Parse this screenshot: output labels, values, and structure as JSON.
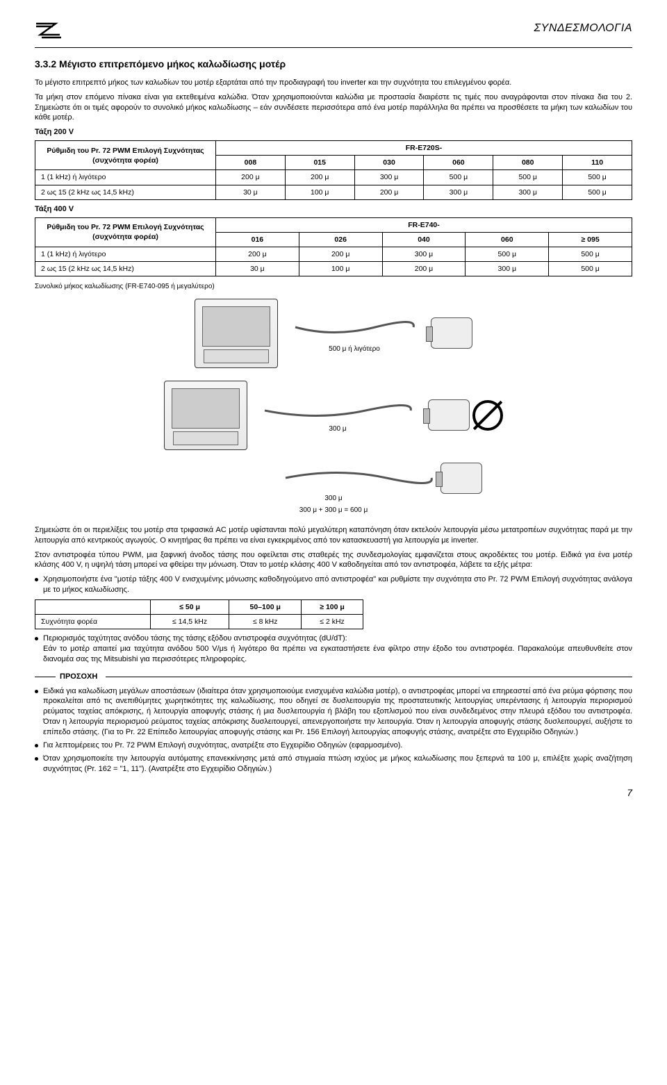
{
  "header": {
    "title_word": "ΣΥΝΔΕΣΜΟΛΟΓΙΑ"
  },
  "section": {
    "number_title": "3.3.2 Μέγιστο επιτρεπόμενο μήκος καλωδίωσης μοτέρ",
    "para1": "Το μέγιστο επιτρεπτό μήκος των καλωδίων του μοτέρ εξαρτάται από την προδιαγραφή του inverter και την συχνότητα του επιλεγμένου φορέα.",
    "para2": "Τα μήκη στον επόμενο πίνακα είναι για εκτεθειμένα καλώδια. Όταν χρησιμοποιούνται καλώδια με προστασία διαιρέστε τις τιμές που αναγράφονται στον πίνακα δια του 2. Σημειώστε ότι οι τιμές αφορούν το συνολικό μήκος καλωδίωσης – εάν συνδέσετε περισσότερα από ένα μοτέρ παράλληλα θα πρέπει να προσθέσετε τα μήκη των καλωδίων του κάθε μοτέρ."
  },
  "tables": {
    "t200v": {
      "heading": "Τάξη 200 V",
      "param_line1": "Ρύθμιδη του Pr. 72 PWM Επιλογή Συχνότητας",
      "param_line2": "(συχνότητα φορέα)",
      "model_prefix": "FR-E720S-",
      "models": [
        "008",
        "015",
        "030",
        "060",
        "080",
        "110"
      ],
      "rows": [
        {
          "label": "1 (1 kHz) ή λιγότερο",
          "vals": [
            "200 μ",
            "200 μ",
            "300 μ",
            "500 μ",
            "500 μ",
            "500 μ"
          ]
        },
        {
          "label": "2 ως 15 (2 kHz ως 14,5 kHz)",
          "vals": [
            "30 μ",
            "100 μ",
            "200 μ",
            "300 μ",
            "300 μ",
            "500 μ"
          ]
        }
      ]
    },
    "t400v": {
      "heading": "Τάξη 400 V",
      "param_line1": "Ρύθμιδη του Pr. 72 PWM Επιλογή Συχνότητας",
      "param_line2": "(συχνότητα φορέα)",
      "model_prefix": "FR-E740-",
      "models": [
        "016",
        "026",
        "040",
        "060",
        "≥ 095"
      ],
      "rows": [
        {
          "label": "1 (1 kHz) ή λιγότερο",
          "vals": [
            "200 μ",
            "200 μ",
            "300 μ",
            "500 μ",
            "500 μ"
          ]
        },
        {
          "label": "2 ως 15 (2 kHz ως 14,5 kHz)",
          "vals": [
            "30 μ",
            "100 μ",
            "200 μ",
            "300 μ",
            "500 μ"
          ]
        }
      ]
    }
  },
  "diagram": {
    "caption": "Συνολικό μήκος καλωδίωσης (FR-E740-095 ή μεγαλύτερο)",
    "label_top": "500 μ ή λιγότερο",
    "label_mid": "300 μ",
    "label_bot": "300 μ",
    "sum_line": "300 μ + 300 μ = 600 μ"
  },
  "paras_after": {
    "p1": "Σημειώστε ότι οι περιελίξεις του μοτέρ στα τριφασικά AC μοτέρ υφίστανται πολύ μεγαλύτερη καταπόνηση όταν εκτελούν λειτουργία μέσω μετατροπέων συχνότητας παρά με την λειτουργία από κεντρικούς αγωγούς. Ο κινητήρας θα πρέπει να είναι εγκεκριμένος από τον κατασκευαστή για λειτουργία με inverter.",
    "p2": "Στον αντιστροφέα τύπου PWM, μια ξαφνική άνοδος τάσης που οφείλεται στις σταθερές της συνδεσμολογίας εμφανίζεται στους ακροδέκτες του μοτέρ. Ειδικά για ένα μοτέρ κλάσης 400 V, η υψηλή τάση μπορεί να φθείρει την μόνωση. Όταν το μοτέρ κλάσης 400 V καθοδηγείται από τον αντιστροφέα, λάβετε τα εξής μέτρα:",
    "bullet1": "Χρησιμοποιήστε ένα \"μοτέρ τάξης 400 V ενισχυμένης μόνωσης καθοδηγούμενο από αντιστροφέα\" και ρυθμίστε την συχνότητα στο Pr. 72 PWM Επιλογή συχνότητας ανάλογα με το μήκος καλωδίωσης."
  },
  "freq_table": {
    "headers": [
      "≤ 50 μ",
      "50–100 μ",
      "≥ 100 μ"
    ],
    "row_label": "Συχνότητα φορέα",
    "row_vals": [
      "≤ 14,5 kHz",
      "≤ 8 kHz",
      "≤ 2 kHz"
    ]
  },
  "paras_after2": {
    "bullet2": "Περιορισμός ταχύτητας ανόδου τάσης της τάσης εξόδου αντιστροφέα συχνότητας (dU/dT):\nΕάν το μοτέρ απαιτεί μια ταχύτητα ανόδου 500 V/μs ή λιγότερο θα πρέπει να εγκαταστήσετε ένα φίλτρο στην έξοδο του αντιστροφέα. Παρακαλούμε απευθυνθείτε στον διανομέα σας της Mitsubishi για περισσότερες πληροφορίες."
  },
  "caution": {
    "title": "ΠΡΟΣΟΧΗ",
    "items": [
      "Ειδικά για καλωδίωση μεγάλων αποστάσεων (ιδιαίτερα όταν χρησιμοποιούμε ενισχυμένα καλώδια μοτέρ), ο αντιστροφέας μπορεί να επηρεαστεί από ένα ρεύμα φόρτισης που προκαλείται από τις ανεπιθύμητες χωρητικότητες της καλωδίωσης, που οδηγεί σε δυσλειτουργία της προστατευτικής λειτουργίας υπερέντασης ή λειτουργία περιορισμού ρεύματος ταχείας απόκρισης, ή λειτουργία αποφυγής στάσης ή μια δυσλειτουργία ή βλάβη του εξοπλισμού που είναι συνδεδεμένος στην πλευρά εξόδου του αντιστροφέα. Όταν η λειτουργία περιορισμού ρεύματος ταχείας απόκρισης δυσλειτουργεί, απενεργοποιήστε την λειτουργία. Όταν η λειτουργία αποφυγής στάσης δυσλειτουργεί, αυξήστε το επίπεδο στάσης. (Για το Pr. 22 Επίπεδο λειτουργίας αποφυγής στάσης και Pr. 156 Επιλογή λειτουργίας αποφυγής στάσης, ανατρέξτε στο Εγχειρίδιο Οδηγιών.)",
      "Για λεπτομέρειες του Pr. 72 PWM Επιλογή συχνότητας, ανατρέξτε στο Εγχειρίδιο Οδηγιών (εφαρμοσμένο).",
      "Όταν χρησιμοποιείτε την λειτουργία αυτόματης επανεκκίνησης μετά από στιγμιαία πτώση ισχύος με μήκος καλωδίωσης που ξεπερνά τα 100 μ, επιλέξτε χωρίς αναζήτηση συχνότητας (Pr. 162 = \"1, 11\"). (Ανατρέξτε στο Εγχειρίδιο Οδηγιών.)"
    ]
  },
  "page_number": "7"
}
